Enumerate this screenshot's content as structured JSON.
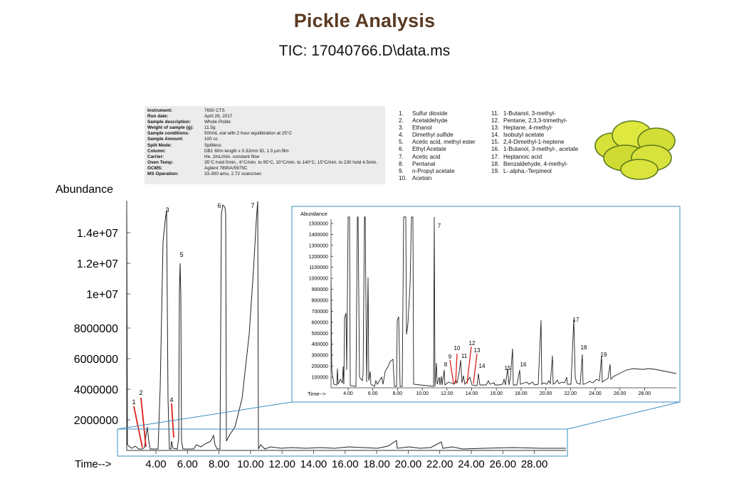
{
  "header": {
    "title": "Pickle Analysis",
    "subtitle": "TIC: 17040766.D\\data.ms"
  },
  "metadata": [
    {
      "key": "Instrument:",
      "value": "7650 CTS"
    },
    {
      "key": "Run date:",
      "value": "April 26, 2017"
    },
    {
      "key": "Sample description:",
      "value": "Whole Pickle"
    },
    {
      "key": "Weight of sample (g):",
      "value": "11.5g"
    },
    {
      "key": "Sample conditions:",
      "value": "500mL vial with 2 hour equilibration at 25°C"
    },
    {
      "key": "Sample Amount:",
      "value": "100 cc"
    },
    {
      "key": "Split Mode:",
      "value": "Splitless"
    },
    {
      "key": "Column:",
      "value": "DB1 60m length x 0.32mm ID, 1.0 µm film"
    },
    {
      "key": "Carrier:",
      "value": "He, 2mL/min. constant flow"
    },
    {
      "key": "Oven Temp:",
      "value": "35°C hold 5min., 6°C/min. to 95°C, 10°C/min. to 140°C, 15°C/min. to 230 hold 4.5min."
    },
    {
      "key": "GCMS:",
      "value": "Agilent 7890A/5975C"
    },
    {
      "key": "MS Operation:",
      "value": "33-300 amu, 2.72 scans/sec"
    }
  ],
  "compounds_col1": [
    {
      "num": "1.",
      "name": "Sulfur dioxide"
    },
    {
      "num": "2.",
      "name": "Acetaldehyde"
    },
    {
      "num": "3.",
      "name": "Ethanol"
    },
    {
      "num": "4.",
      "name": "Dimethyl sulfide"
    },
    {
      "num": "5.",
      "name": "Acetic acid, methyl ester"
    },
    {
      "num": "6.",
      "name": "Ethyl Acetate"
    },
    {
      "num": "7.",
      "name": "Acetic acid"
    },
    {
      "num": "8.",
      "name": "Pentanal"
    },
    {
      "num": "9.",
      "name": "n-Propyl acetate"
    },
    {
      "num": "10.",
      "name": "Acetoin"
    }
  ],
  "compounds_col2": [
    {
      "num": "11.",
      "name": "1-Butanol, 3-methyl-"
    },
    {
      "num": "12.",
      "name": "Pentane, 2,3,3-trimethyl-"
    },
    {
      "num": "13.",
      "name": "Heptane, 4-methyl-"
    },
    {
      "num": "14.",
      "name": "Isobutyl acetate"
    },
    {
      "num": "15.",
      "name": "2,4-Dimethyl-1-heptene"
    },
    {
      "num": "16.",
      "name": "1-Butanol, 3-methyl-, acetate"
    },
    {
      "num": "17.",
      "name": "Heptanoic acid"
    },
    {
      "num": "18.",
      "name": "Benzaldehyde, 4-methyl-"
    },
    {
      "num": "19.",
      "name": "L-.alpha.-Terpineol"
    }
  ],
  "colors": {
    "title": "#5b3a22",
    "trace": "#222222",
    "callout_line": "#e0201b",
    "zoom_box": "#3b8fc0",
    "meta_bg": "#ececec"
  },
  "chart_data": [
    {
      "type": "line",
      "title": "TIC: 17040766.D\\data.ms",
      "xlabel": "Time-->",
      "ylabel": "Abundance",
      "x_ticks": [
        "4.00",
        "6.00",
        "8.00",
        "10.00",
        "12.00",
        "14.00",
        "16.00",
        "18.00",
        "20.00",
        "22.00",
        "24.00",
        "26.00",
        "28.00"
      ],
      "y_ticks": [
        "2000000",
        "4000000",
        "6000000",
        "8000000",
        "1e+07",
        "1.2e+07",
        "1.4e+07"
      ],
      "xlim": [
        2.0,
        30.0
      ],
      "ylim": [
        0,
        15800000
      ],
      "grid": false,
      "peaks": [
        {
          "label": "1",
          "time": 3.1,
          "abundance": 150000
        },
        {
          "label": "2",
          "time": 3.3,
          "abundance": 300000
        },
        {
          "label": "3",
          "time": 4.6,
          "abundance": 15000000
        },
        {
          "label": "4",
          "time": 5.1,
          "abundance": 900000
        },
        {
          "label": "5",
          "time": 5.5,
          "abundance": 12000000
        },
        {
          "label": "6",
          "time": 8.2,
          "abundance": 15600000
        },
        {
          "label": "7",
          "time": 10.4,
          "abundance": 15800000
        }
      ]
    },
    {
      "type": "line",
      "title": "Inset (zoomed baseline)",
      "xlabel": "Time-->",
      "ylabel": "Abundance",
      "x_ticks": [
        "4.00",
        "6.00",
        "8.00",
        "10.00",
        "12.00",
        "14.00",
        "16.00",
        "18.00",
        "20.00",
        "22.00",
        "24.00",
        "26.00",
        "28.00"
      ],
      "y_ticks": [
        "100000",
        "200000",
        "300000",
        "400000",
        "500000",
        "600000",
        "700000",
        "800000",
        "900000",
        "1000000",
        "1100000",
        "1200000",
        "1300000",
        "1400000",
        "1500000"
      ],
      "xlim": [
        2.7,
        30.0
      ],
      "ylim": [
        0,
        1550000
      ],
      "grid": false,
      "peaks": [
        {
          "label": "7",
          "time": 11.1,
          "abundance": 1550000
        },
        {
          "label": "8",
          "time": 12.1,
          "abundance": 180000
        },
        {
          "label": "9",
          "time": 12.6,
          "abundance": 40000
        },
        {
          "label": "10",
          "time": 12.8,
          "abundance": 60000
        },
        {
          "label": "11",
          "time": 13.5,
          "abundance": 230000
        },
        {
          "label": "12",
          "time": 14.0,
          "abundance": 30000
        },
        {
          "label": "13",
          "time": 14.3,
          "abundance": 40000
        },
        {
          "label": "14",
          "time": 14.9,
          "abundance": 140000
        },
        {
          "label": "15",
          "time": 17.1,
          "abundance": 130000
        },
        {
          "label": "16",
          "time": 18.4,
          "abundance": 150000
        },
        {
          "label": "17",
          "time": 22.6,
          "abundance": 620000
        },
        {
          "label": "18",
          "time": 23.2,
          "abundance": 330000
        },
        {
          "label": "19",
          "time": 24.8,
          "abundance": 230000
        }
      ],
      "unlabeled_peaks": [
        {
          "time": 17.7,
          "abundance": 350000
        },
        {
          "time": 20.0,
          "abundance": 620000
        },
        {
          "time": 20.9,
          "abundance": 440000
        },
        {
          "time": 25.5,
          "abundance": 240000
        }
      ]
    }
  ]
}
